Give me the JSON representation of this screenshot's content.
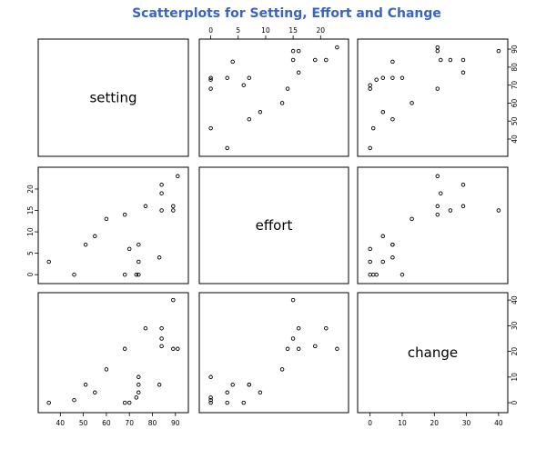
{
  "chart_data": {
    "type": "scatter",
    "title": "Scatterplots for Setting, Effort and Change",
    "title_color": "#3a64c4",
    "variables": [
      "setting",
      "effort",
      "change"
    ],
    "axis_ticks": {
      "setting": [
        "40",
        "50",
        "60",
        "70",
        "80",
        "90"
      ],
      "effort": [
        "0",
        "5",
        "10",
        "15",
        "20"
      ],
      "change": [
        "0",
        "10",
        "20",
        "30",
        "40"
      ]
    },
    "tick_values": {
      "setting": [
        40,
        50,
        60,
        70,
        80,
        90
      ],
      "effort": [
        0,
        5,
        10,
        15,
        20
      ],
      "change": [
        0,
        10,
        20,
        30,
        40
      ]
    },
    "axis_ranges": {
      "setting": [
        33,
        93
      ],
      "effort": [
        -1,
        24
      ],
      "change": [
        -2,
        41
      ]
    },
    "observations": [
      {
        "setting": 46,
        "effort": 0,
        "change": 1
      },
      {
        "setting": 74,
        "effort": 0,
        "change": 10
      },
      {
        "setting": 35,
        "effort": 3,
        "change": 0
      },
      {
        "setting": 83,
        "effort": 4,
        "change": 7
      },
      {
        "setting": 68,
        "effort": 0,
        "change": 0
      },
      {
        "setting": 74,
        "effort": 7,
        "change": 7
      },
      {
        "setting": 89,
        "effort": 16,
        "change": 21
      },
      {
        "setting": 77,
        "effort": 16,
        "change": 29
      },
      {
        "setting": 84,
        "effort": 21,
        "change": 29
      },
      {
        "setting": 89,
        "effort": 15,
        "change": 40
      },
      {
        "setting": 68,
        "effort": 14,
        "change": 21
      },
      {
        "setting": 70,
        "effort": 6,
        "change": 0
      },
      {
        "setting": 60,
        "effort": 13,
        "change": 13
      },
      {
        "setting": 55,
        "effort": 9,
        "change": 4
      },
      {
        "setting": 51,
        "effort": 7,
        "change": 7
      },
      {
        "setting": 91,
        "effort": 23,
        "change": 21
      },
      {
        "setting": 84,
        "effort": 19,
        "change": 22
      },
      {
        "setting": 84,
        "effort": 15,
        "change": 25
      },
      {
        "setting": 74,
        "effort": 3,
        "change": 4
      },
      {
        "setting": 73,
        "effort": 0,
        "change": 2
      }
    ],
    "point_color": "#000000",
    "grid": false,
    "legend": "none"
  }
}
